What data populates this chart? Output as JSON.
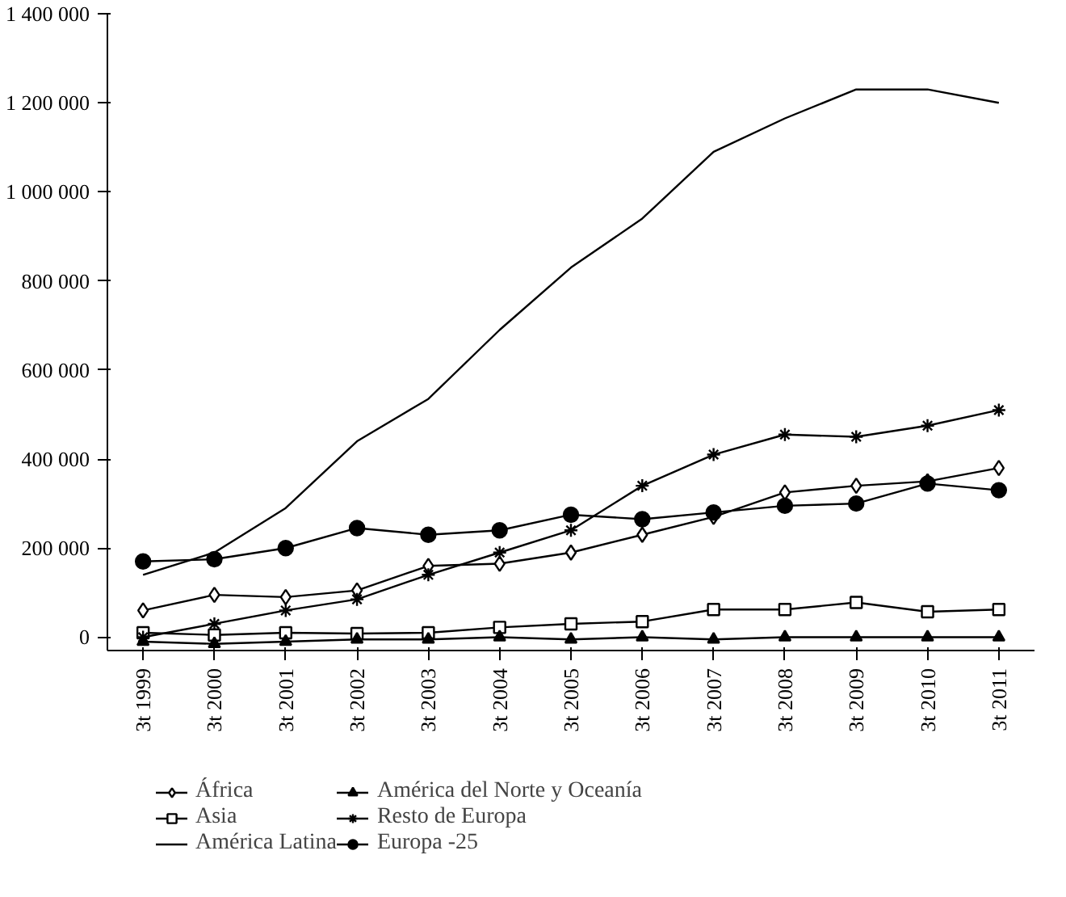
{
  "chart_data": {
    "type": "line",
    "categories": [
      "3t 1999",
      "3t 2000",
      "3t 2001",
      "3t 2002",
      "3t 2003",
      "3t 2004",
      "3t 2005",
      "3t 2006",
      "3t 2007",
      "3t 2008",
      "3t 2009",
      "3t 2010",
      "3t 2011"
    ],
    "series": [
      {
        "name": "África",
        "color": "#000000",
        "marker": "diamond",
        "values": [
          60000,
          95000,
          90000,
          105000,
          160000,
          165000,
          190000,
          230000,
          270000,
          325000,
          340000,
          350000,
          380000
        ]
      },
      {
        "name": "Asia",
        "color": "#000000",
        "marker": "square",
        "values": [
          10000,
          5000,
          10000,
          8000,
          10000,
          22000,
          30000,
          35000,
          62000,
          62000,
          78000,
          57000,
          62000
        ]
      },
      {
        "name": "América Latina",
        "color": "#000000",
        "marker": "none",
        "values": [
          140000,
          190000,
          290000,
          440000,
          535000,
          690000,
          830000,
          940000,
          1090000,
          1165000,
          1230000,
          1230000,
          1200000
        ]
      },
      {
        "name": "América del Norte y Oceanía",
        "color": "#000000",
        "marker": "triangle",
        "values": [
          -10000,
          -15000,
          -10000,
          -5000,
          -5000,
          0,
          -5000,
          0,
          -5000,
          0,
          0,
          0,
          0
        ]
      },
      {
        "name": "Resto de Europa",
        "color": "#000000",
        "marker": "cross",
        "values": [
          0,
          30000,
          60000,
          85000,
          140000,
          190000,
          240000,
          340000,
          410000,
          455000,
          450000,
          475000,
          510000
        ]
      },
      {
        "name": "Europa -25",
        "color": "#000000",
        "marker": "circle",
        "values": [
          170000,
          175000,
          200000,
          245000,
          230000,
          240000,
          275000,
          265000,
          280000,
          295000,
          300000,
          345000,
          330000
        ]
      }
    ],
    "ylim": [
      -30000,
      1400000
    ],
    "yticks": [
      {
        "value": 0,
        "label": "0"
      },
      {
        "value": 200000,
        "label": "200 000"
      },
      {
        "value": 400000,
        "label": "400 000"
      },
      {
        "value": 600000,
        "label": "600 000"
      },
      {
        "value": 800000,
        "label": "800 000"
      },
      {
        "value": 1000000,
        "label": "1 000 000"
      },
      {
        "value": 1200000,
        "label": "1 200 000"
      },
      {
        "value": 1400000,
        "label": "1 400 000"
      }
    ],
    "grid": false,
    "legend": "bottom",
    "line_style": "solid"
  }
}
